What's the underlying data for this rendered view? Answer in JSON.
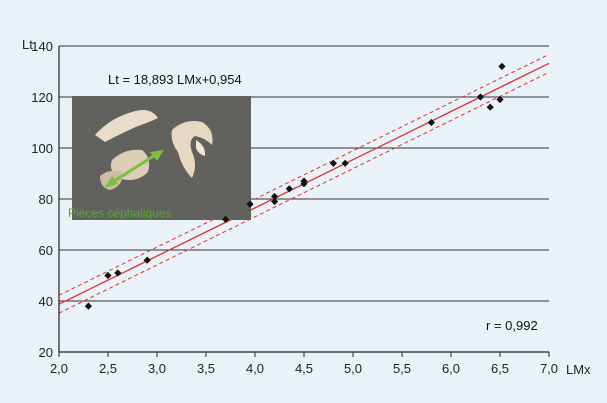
{
  "chart_data": {
    "type": "scatter",
    "xlabel": "LMx",
    "ylabel": "Lt",
    "xlim": [
      2.0,
      7.0
    ],
    "ylim": [
      20,
      140
    ],
    "x_ticks": [
      "2,0",
      "2,5",
      "3,0",
      "3,5",
      "4,0",
      "4,5",
      "5,0",
      "5,5",
      "6,0",
      "6,5",
      "7,0"
    ],
    "y_ticks": [
      "20",
      "40",
      "60",
      "80",
      "100",
      "120",
      "140"
    ],
    "grid": "horizontal",
    "equation": "Lt = 18,893 LMx+0,954",
    "r_label": "r = 0,992",
    "photo_caption": "Pièces céphaliques",
    "points": [
      {
        "x": 2.3,
        "y": 38
      },
      {
        "x": 2.5,
        "y": 50
      },
      {
        "x": 2.6,
        "y": 51
      },
      {
        "x": 2.9,
        "y": 56
      },
      {
        "x": 3.7,
        "y": 72
      },
      {
        "x": 3.95,
        "y": 78
      },
      {
        "x": 4.2,
        "y": 79
      },
      {
        "x": 4.2,
        "y": 81
      },
      {
        "x": 4.35,
        "y": 84
      },
      {
        "x": 4.5,
        "y": 86
      },
      {
        "x": 4.5,
        "y": 87
      },
      {
        "x": 4.8,
        "y": 94
      },
      {
        "x": 4.92,
        "y": 94
      },
      {
        "x": 5.8,
        "y": 110
      },
      {
        "x": 6.3,
        "y": 120
      },
      {
        "x": 6.4,
        "y": 116
      },
      {
        "x": 6.5,
        "y": 119
      },
      {
        "x": 6.52,
        "y": 132
      }
    ],
    "regression": {
      "slope": 18.893,
      "intercept": 0.954,
      "band_halfwidth": 3.5
    },
    "colors": {
      "panel": "#e9f2f7",
      "grid": "#333333",
      "points": "#111111",
      "fit_line": "#e03030",
      "confidence_band": "#e03030",
      "caption": "#5aa832",
      "arrow": "#7cc043"
    }
  }
}
